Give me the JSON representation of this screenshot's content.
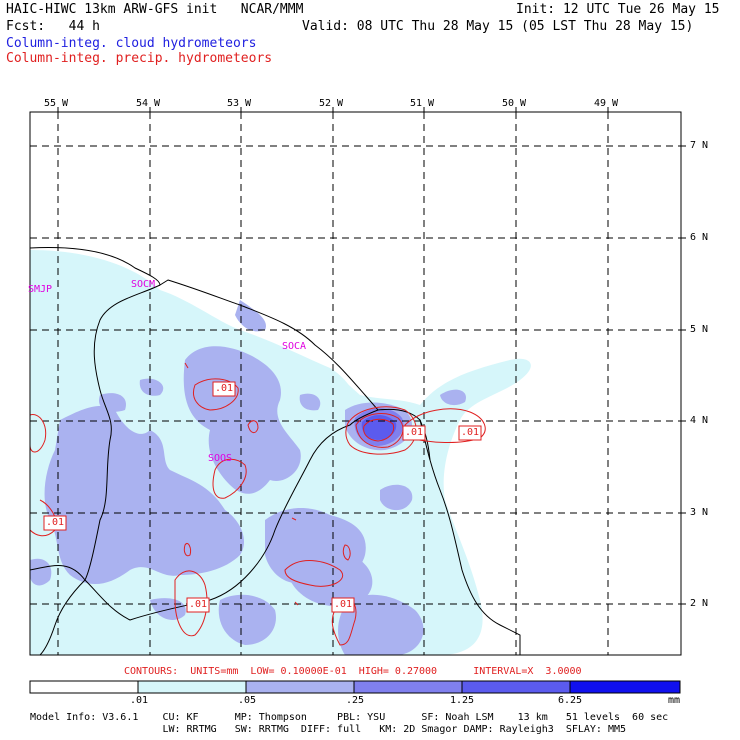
{
  "header": {
    "line1_left": "HAIC-HIWC 13km ARW-GFS init   NCAR/MMM",
    "line1_right": "Init: 12 UTC Tue 26 May 15",
    "line2_left": "Fcst:   44 h",
    "line2_right": "Valid: 08 UTC Thu 28 May 15 (05 LST Thu 28 May 15)",
    "line3": "Column-integ. cloud hydrometeors",
    "line4": "Column-integ. precip. hydrometeors"
  },
  "axes": {
    "longitudes": [
      "55 W",
      "54 W",
      "53 W",
      "52 W",
      "51 W",
      "50 W",
      "49 W"
    ],
    "latitudes": [
      "7 N",
      "6 N",
      "5 N",
      "4 N",
      "3 N",
      "2 N"
    ]
  },
  "place_labels": [
    "SMJP",
    "SOCM",
    "SOCA",
    "SOOS"
  ],
  "contour_labels": [
    ".01",
    ".01",
    ".01",
    ".01",
    ".01",
    ".01",
    ".01"
  ],
  "contour_info": "CONTOURS:  UNITS=mm  LOW= 0.10000E-01  HIGH= 0.27000      INTERVAL=X  3.0000",
  "legend": {
    "ticks": [
      ".01",
      ".05",
      ".25",
      "1.25",
      "6.25"
    ],
    "unit": "mm",
    "colors": [
      "#ffffff",
      "#d6f6fa",
      "#aab2f0",
      "#8080ee",
      "#5b5bee",
      "#3535ea",
      "#1010ee"
    ]
  },
  "model_info": {
    "line1": "Model Info: V3.6.1    CU: KF      MP: Thompson     PBL: YSU      SF: Noah LSM    13 km   51 levels  60 sec",
    "line2": "                      LW: RRTMG   SW: RRTMG  DIFF: full   KM: 2D Smagor DAMP: Rayleigh3  SFLAY: MM5"
  }
}
